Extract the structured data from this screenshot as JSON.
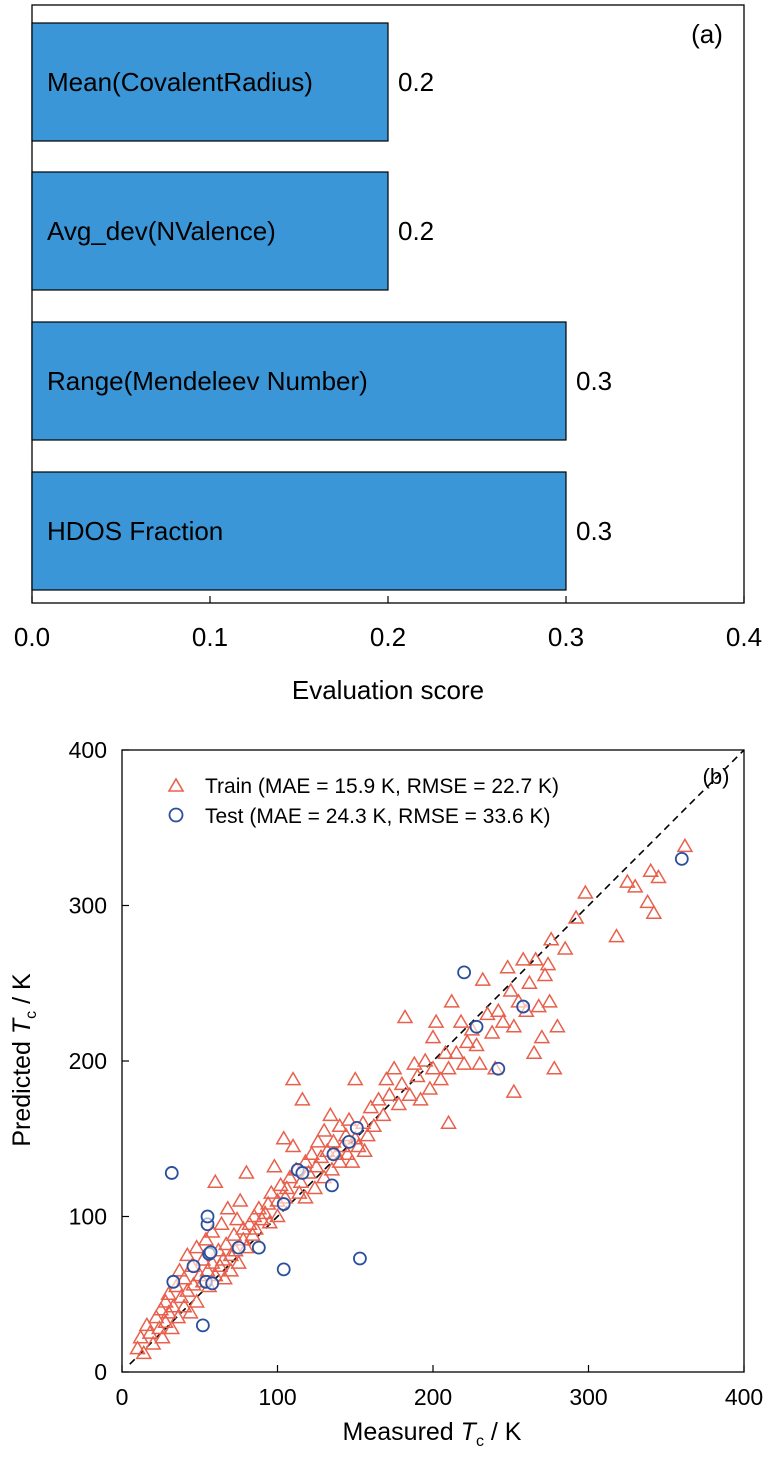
{
  "chart_data": [
    {
      "type": "bar",
      "orientation": "horizontal",
      "panel_label": "(a)",
      "categories": [
        "Mean(CovalentRadius)",
        "Avg_dev(NValence)",
        "Range(Mendeleev Number)",
        "HDOS Fraction"
      ],
      "values": [
        0.2,
        0.2,
        0.3,
        0.3
      ],
      "value_labels": [
        "0.2",
        "0.2",
        "0.3",
        "0.3"
      ],
      "xlabel": "Evaluation score",
      "ylabel": "",
      "xlim": [
        0.0,
        0.4
      ],
      "xticks": [
        "0.0",
        "0.1",
        "0.2",
        "0.3",
        "0.4"
      ],
      "bar_color": "#3a96d6",
      "grid": false
    },
    {
      "type": "scatter",
      "panel_label": "(b)",
      "xlabel": {
        "pre": "Measured ",
        "var": "T",
        "sub": "c",
        "post": " / K"
      },
      "ylabel": {
        "pre": "Predicted ",
        "var": "T",
        "sub": "c",
        "post": " / K"
      },
      "xlim": [
        0,
        400
      ],
      "ylim": [
        0,
        400
      ],
      "xticks": [
        "0",
        "100",
        "200",
        "300",
        "400"
      ],
      "yticks": [
        "0",
        "100",
        "200",
        "300",
        "400"
      ],
      "legend_position": "top-left",
      "reference_line": "y = x (dashed)",
      "grid": false,
      "series": [
        {
          "name": "Train (MAE = 15.9 K, RMSE = 22.7 K)",
          "marker": "triangle",
          "color": "#e8604c",
          "points": [
            [
              10,
              15
            ],
            [
              12,
              22
            ],
            [
              14,
              12
            ],
            [
              16,
              30
            ],
            [
              18,
              25
            ],
            [
              20,
              18
            ],
            [
              22,
              35
            ],
            [
              24,
              28
            ],
            [
              25,
              40
            ],
            [
              26,
              22
            ],
            [
              28,
              45
            ],
            [
              28,
              32
            ],
            [
              30,
              38
            ],
            [
              30,
              50
            ],
            [
              32,
              28
            ],
            [
              33,
              42
            ],
            [
              35,
              55
            ],
            [
              36,
              35
            ],
            [
              37,
              65
            ],
            [
              38,
              48
            ],
            [
              40,
              60
            ],
            [
              40,
              42
            ],
            [
              42,
              52
            ],
            [
              42,
              75
            ],
            [
              44,
              38
            ],
            [
              45,
              68
            ],
            [
              46,
              56
            ],
            [
              48,
              80
            ],
            [
              48,
              45
            ],
            [
              50,
              62
            ],
            [
              52,
              58
            ],
            [
              52,
              72
            ],
            [
              54,
              85
            ],
            [
              55,
              65
            ],
            [
              56,
              55
            ],
            [
              58,
              70
            ],
            [
              58,
              90
            ],
            [
              60,
              62
            ],
            [
              60,
              122
            ],
            [
              62,
              78
            ],
            [
              63,
              68
            ],
            [
              64,
              95
            ],
            [
              65,
              72
            ],
            [
              66,
              60
            ],
            [
              67,
              82
            ],
            [
              68,
              105
            ],
            [
              70,
              75
            ],
            [
              70,
              65
            ],
            [
              72,
              88
            ],
            [
              73,
              78
            ],
            [
              74,
              98
            ],
            [
              75,
              70
            ],
            [
              76,
              110
            ],
            [
              78,
              85
            ],
            [
              78,
              92
            ],
            [
              80,
              128
            ],
            [
              80,
              80
            ],
            [
              82,
              95
            ],
            [
              84,
              88
            ],
            [
              85,
              100
            ],
            [
              86,
              92
            ],
            [
              88,
              105
            ],
            [
              90,
              98
            ],
            [
              92,
              102
            ],
            [
              94,
              108
            ],
            [
              95,
              96
            ],
            [
              96,
              115
            ],
            [
              98,
              132
            ],
            [
              100,
              110
            ],
            [
              100,
              100
            ],
            [
              102,
              120
            ],
            [
              104,
              150
            ],
            [
              105,
              112
            ],
            [
              106,
              118
            ],
            [
              108,
              125
            ],
            [
              110,
              188
            ],
            [
              110,
              145
            ],
            [
              112,
              130
            ],
            [
              114,
              115
            ],
            [
              115,
              122
            ],
            [
              116,
              175
            ],
            [
              118,
              135
            ],
            [
              118,
              112
            ],
            [
              120,
              128
            ],
            [
              122,
              140
            ],
            [
              124,
              118
            ],
            [
              125,
              132
            ],
            [
              126,
              148
            ],
            [
              128,
              138
            ],
            [
              130,
              125
            ],
            [
              130,
              155
            ],
            [
              132,
              142
            ],
            [
              134,
              165
            ],
            [
              135,
              130
            ],
            [
              136,
              148
            ],
            [
              138,
              140
            ],
            [
              140,
              158
            ],
            [
              140,
              135
            ],
            [
              142,
              145
            ],
            [
              144,
              152
            ],
            [
              145,
              140
            ],
            [
              146,
              162
            ],
            [
              148,
              135
            ],
            [
              150,
              150
            ],
            [
              150,
              188
            ],
            [
              152,
              145
            ],
            [
              155,
              160
            ],
            [
              156,
              142
            ],
            [
              158,
              152
            ],
            [
              160,
              170
            ],
            [
              162,
              158
            ],
            [
              165,
              175
            ],
            [
              168,
              165
            ],
            [
              170,
              188
            ],
            [
              172,
              178
            ],
            [
              175,
              195
            ],
            [
              178,
              172
            ],
            [
              180,
              185
            ],
            [
              182,
              228
            ],
            [
              185,
              178
            ],
            [
              188,
              198
            ],
            [
              190,
              190
            ],
            [
              192,
              175
            ],
            [
              195,
              200
            ],
            [
              198,
              182
            ],
            [
              200,
              215
            ],
            [
              200,
              195
            ],
            [
              202,
              225
            ],
            [
              205,
              188
            ],
            [
              208,
              205
            ],
            [
              210,
              160
            ],
            [
              210,
              195
            ],
            [
              212,
              238
            ],
            [
              215,
              205
            ],
            [
              218,
              225
            ],
            [
              220,
              198
            ],
            [
              222,
              212
            ],
            [
              225,
              220
            ],
            [
              228,
              210
            ],
            [
              230,
              198
            ],
            [
              232,
              252
            ],
            [
              235,
              230
            ],
            [
              238,
              218
            ],
            [
              240,
              195
            ],
            [
              242,
              232
            ],
            [
              245,
              225
            ],
            [
              248,
              260
            ],
            [
              250,
              245
            ],
            [
              252,
              180
            ],
            [
              252,
              222
            ],
            [
              255,
              238
            ],
            [
              258,
              265
            ],
            [
              260,
              232
            ],
            [
              262,
              250
            ],
            [
              265,
              205
            ],
            [
              266,
              265
            ],
            [
              268,
              235
            ],
            [
              270,
              215
            ],
            [
              272,
              255
            ],
            [
              274,
              262
            ],
            [
              275,
              238
            ],
            [
              276,
              278
            ],
            [
              278,
              195
            ],
            [
              280,
              222
            ],
            [
              285,
              272
            ],
            [
              292,
              292
            ],
            [
              298,
              308
            ],
            [
              318,
              280
            ],
            [
              325,
              315
            ],
            [
              330,
              312
            ],
            [
              338,
              302
            ],
            [
              340,
              322
            ],
            [
              342,
              295
            ],
            [
              345,
              318
            ],
            [
              362,
              338
            ]
          ]
        },
        {
          "name": "Test (MAE = 24.3 K, RMSE = 33.6 K)",
          "marker": "circle",
          "color": "#2b4f9e",
          "points": [
            [
              32,
              128
            ],
            [
              33,
              58
            ],
            [
              46,
              68
            ],
            [
              52,
              30
            ],
            [
              54,
              58
            ],
            [
              55,
              95
            ],
            [
              55,
              100
            ],
            [
              56,
              76
            ],
            [
              57,
              77
            ],
            [
              58,
              57
            ],
            [
              75,
              80
            ],
            [
              88,
              80
            ],
            [
              104,
              108
            ],
            [
              104,
              66
            ],
            [
              113,
              130
            ],
            [
              116,
              128
            ],
            [
              135,
              120
            ],
            [
              136,
              140
            ],
            [
              146,
              148
            ],
            [
              151,
              157
            ],
            [
              153,
              73
            ],
            [
              220,
              257
            ],
            [
              228,
              222
            ],
            [
              242,
              195
            ],
            [
              258,
              235
            ],
            [
              360,
              330
            ]
          ]
        }
      ]
    }
  ]
}
